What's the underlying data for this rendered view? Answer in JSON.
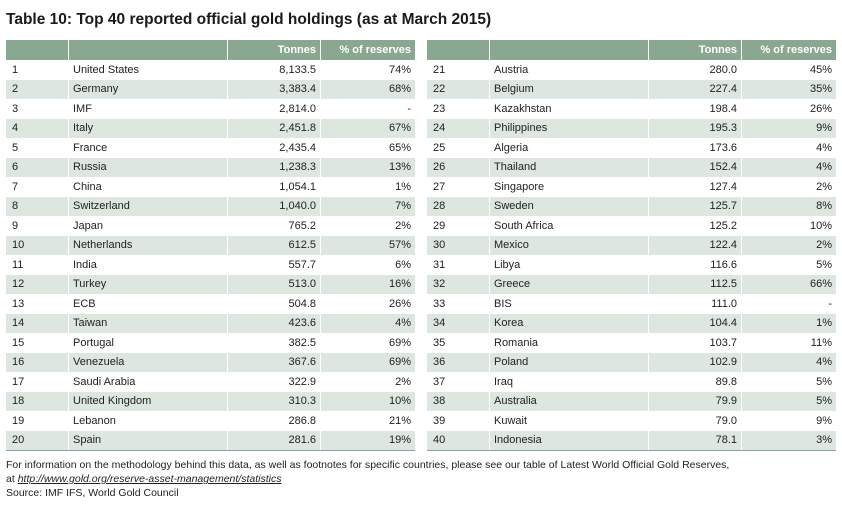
{
  "title": "Table 10: Top 40 reported official gold holdings (as at March 2015)",
  "headers": {
    "rank": "",
    "country": "",
    "tonnes": "Tonnes",
    "pct": "% of reserves"
  },
  "left_rows": [
    {
      "rank": "1",
      "country": "United States",
      "tonnes": "8,133.5",
      "pct": "74%"
    },
    {
      "rank": "2",
      "country": "Germany",
      "tonnes": "3,383.4",
      "pct": "68%"
    },
    {
      "rank": "3",
      "country": "IMF",
      "tonnes": "2,814.0",
      "pct": "-"
    },
    {
      "rank": "4",
      "country": "Italy",
      "tonnes": "2,451.8",
      "pct": "67%"
    },
    {
      "rank": "5",
      "country": "France",
      "tonnes": "2,435.4",
      "pct": "65%"
    },
    {
      "rank": "6",
      "country": "Russia",
      "tonnes": "1,238.3",
      "pct": "13%"
    },
    {
      "rank": "7",
      "country": "China",
      "tonnes": "1,054.1",
      "pct": "1%"
    },
    {
      "rank": "8",
      "country": "Switzerland",
      "tonnes": "1,040.0",
      "pct": "7%"
    },
    {
      "rank": "9",
      "country": "Japan",
      "tonnes": "765.2",
      "pct": "2%"
    },
    {
      "rank": "10",
      "country": "Netherlands",
      "tonnes": "612.5",
      "pct": "57%"
    },
    {
      "rank": "11",
      "country": "India",
      "tonnes": "557.7",
      "pct": "6%"
    },
    {
      "rank": "12",
      "country": "Turkey",
      "tonnes": "513.0",
      "pct": "16%"
    },
    {
      "rank": "13",
      "country": "ECB",
      "tonnes": "504.8",
      "pct": "26%"
    },
    {
      "rank": "14",
      "country": "Taiwan",
      "tonnes": "423.6",
      "pct": "4%"
    },
    {
      "rank": "15",
      "country": "Portugal",
      "tonnes": "382.5",
      "pct": "69%"
    },
    {
      "rank": "16",
      "country": "Venezuela",
      "tonnes": "367.6",
      "pct": "69%"
    },
    {
      "rank": "17",
      "country": "Saudi Arabia",
      "tonnes": "322.9",
      "pct": "2%"
    },
    {
      "rank": "18",
      "country": "United Kingdom",
      "tonnes": "310.3",
      "pct": "10%"
    },
    {
      "rank": "19",
      "country": "Lebanon",
      "tonnes": "286.8",
      "pct": "21%"
    },
    {
      "rank": "20",
      "country": "Spain",
      "tonnes": "281.6",
      "pct": "19%"
    }
  ],
  "right_rows": [
    {
      "rank": "21",
      "country": "Austria",
      "tonnes": "280.0",
      "pct": "45%"
    },
    {
      "rank": "22",
      "country": "Belgium",
      "tonnes": "227.4",
      "pct": "35%"
    },
    {
      "rank": "23",
      "country": "Kazakhstan",
      "tonnes": "198.4",
      "pct": "26%"
    },
    {
      "rank": "24",
      "country": "Philippines",
      "tonnes": "195.3",
      "pct": "9%"
    },
    {
      "rank": "25",
      "country": "Algeria",
      "tonnes": "173.6",
      "pct": "4%"
    },
    {
      "rank": "26",
      "country": "Thailand",
      "tonnes": "152.4",
      "pct": "4%"
    },
    {
      "rank": "27",
      "country": "Singapore",
      "tonnes": "127.4",
      "pct": "2%"
    },
    {
      "rank": "28",
      "country": "Sweden",
      "tonnes": "125.7",
      "pct": "8%"
    },
    {
      "rank": "29",
      "country": "South Africa",
      "tonnes": "125.2",
      "pct": "10%"
    },
    {
      "rank": "30",
      "country": "Mexico",
      "tonnes": "122.4",
      "pct": "2%"
    },
    {
      "rank": "31",
      "country": "Libya",
      "tonnes": "116.6",
      "pct": "5%"
    },
    {
      "rank": "32",
      "country": "Greece",
      "tonnes": "112.5",
      "pct": "66%"
    },
    {
      "rank": "33",
      "country": "BIS",
      "tonnes": "111.0",
      "pct": "-"
    },
    {
      "rank": "34",
      "country": "Korea",
      "tonnes": "104.4",
      "pct": "1%"
    },
    {
      "rank": "35",
      "country": "Romania",
      "tonnes": "103.7",
      "pct": "11%"
    },
    {
      "rank": "36",
      "country": "Poland",
      "tonnes": "102.9",
      "pct": "4%"
    },
    {
      "rank": "37",
      "country": "Iraq",
      "tonnes": "89.8",
      "pct": "5%"
    },
    {
      "rank": "38",
      "country": "Australia",
      "tonnes": "79.9",
      "pct": "5%"
    },
    {
      "rank": "39",
      "country": "Kuwait",
      "tonnes": "79.0",
      "pct": "9%"
    },
    {
      "rank": "40",
      "country": "Indonesia",
      "tonnes": "78.1",
      "pct": "3%"
    }
  ],
  "notes": {
    "line1": "For information on the methodology behind this data, as well as footnotes for specific countries, please see our table of Latest World Official Gold Reserves,",
    "line2_prefix": "at ",
    "link": "http://www.gold.org/reserve-asset-management/statistics",
    "source": "Source: IMF IFS, World Gold Council"
  }
}
